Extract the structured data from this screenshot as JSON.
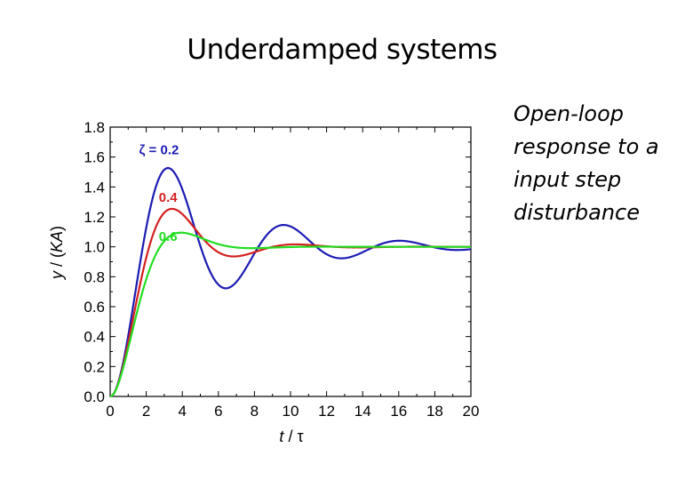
{
  "slide": {
    "title": "Underdamped systems",
    "caption_lines": [
      "Open-loop",
      "response to a",
      "input step",
      "disturbance"
    ]
  },
  "chart_data": {
    "type": "line",
    "title": "",
    "xlabel_italic": "t",
    "xlabel_rest": " / τ",
    "ylabel_italic": "y",
    "ylabel_rest": " / (",
    "ylabel_italic2": "KA",
    "ylabel_end": ")",
    "xlim": [
      0,
      20
    ],
    "ylim": [
      0,
      1.8
    ],
    "xticks": [
      0,
      2,
      4,
      6,
      8,
      10,
      12,
      14,
      16,
      18,
      20
    ],
    "yticks": [
      0.0,
      0.2,
      0.4,
      0.6,
      0.8,
      1.0,
      1.2,
      1.4,
      1.6,
      1.8
    ],
    "ytick_labels": [
      "0.0",
      "0.2",
      "0.4",
      "0.6",
      "0.8",
      "1.0",
      "1.2",
      "1.4",
      "1.6",
      "1.8"
    ],
    "grid": false,
    "series": [
      {
        "name": "ζ = 0.2",
        "zeta": 0.2,
        "color": "#1c1cb4",
        "label_x": 1.6,
        "label_y": 1.62,
        "x": [
          0,
          1,
          2,
          3,
          3.21,
          4,
          5,
          6,
          6.41,
          7,
          8,
          9,
          9.62,
          10,
          11,
          12,
          12.82,
          14,
          16.03,
          18,
          20
        ],
        "y": [
          0,
          0.42,
          1.16,
          1.51,
          1.53,
          1.4,
          0.98,
          0.74,
          0.72,
          0.77,
          0.99,
          1.13,
          1.15,
          1.13,
          1.03,
          0.95,
          0.93,
          0.98,
          1.03,
          0.99,
          0.98
        ]
      },
      {
        "name": "0.4",
        "zeta": 0.4,
        "color": "#d42020",
        "label_x": 2.7,
        "label_y": 1.3,
        "x": [
          0,
          1,
          2,
          3,
          3.43,
          4,
          5,
          6,
          6.86,
          8,
          10,
          12,
          14,
          16,
          18,
          20
        ],
        "y": [
          0,
          0.4,
          0.98,
          1.23,
          1.25,
          1.23,
          1.1,
          0.98,
          0.95,
          0.97,
          1.02,
          1.0,
          1.0,
          1.0,
          1.0,
          1.0
        ]
      },
      {
        "name": "0.6",
        "zeta": 0.6,
        "color": "#22dd22",
        "label_x": 2.7,
        "label_y": 1.04,
        "x": [
          0,
          1,
          2,
          3,
          3.93,
          5,
          6,
          7,
          8,
          10,
          12,
          14,
          16,
          18,
          20
        ],
        "y": [
          0,
          0.32,
          0.79,
          1.03,
          1.09,
          1.06,
          1.02,
          1.0,
          0.99,
          1.0,
          1.0,
          1.0,
          1.0,
          1.0,
          1.0
        ]
      }
    ]
  }
}
